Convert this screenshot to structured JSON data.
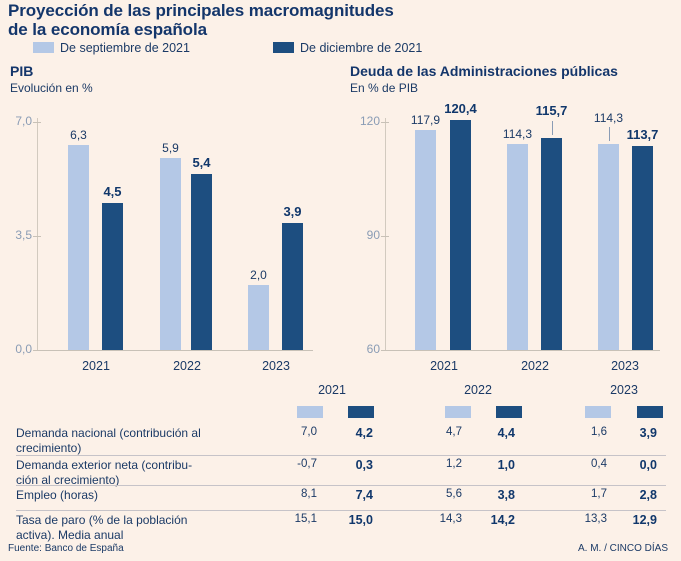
{
  "title": {
    "line1": "Proyección de las principales macromagnitudes",
    "line2": "de la economía española"
  },
  "legend": [
    {
      "label": "De septiembre de 2021",
      "color": "#b4c8e6"
    },
    {
      "label": "De diciembre de 2021",
      "color": "#1d4e80"
    }
  ],
  "colors": {
    "background": "#fcf1e8",
    "light_series": "#b4c8e6",
    "dark_series": "#1d4e80",
    "navy_text": "#1b3a66",
    "axis_label": "#8a9cb5"
  },
  "chart_data": [
    {
      "type": "bar",
      "title": "PIB",
      "subtitle": "Evolución en %",
      "categories": [
        "2021",
        "2022",
        "2023"
      ],
      "series": [
        {
          "name": "De septiembre de 2021",
          "values": [
            6.3,
            5.9,
            2.0
          ]
        },
        {
          "name": "De diciembre de 2021",
          "values": [
            4.5,
            5.4,
            3.9
          ]
        }
      ],
      "ylim": [
        0,
        7
      ],
      "yticks": [
        "7,0",
        "3,5",
        "0,0"
      ],
      "grid": false,
      "value_labels": true,
      "legend_position": "top"
    },
    {
      "type": "bar",
      "title": "Deuda de las Administraciones públicas",
      "subtitle": "En % de PIB",
      "categories": [
        "2021",
        "2022",
        "2023"
      ],
      "series": [
        {
          "name": "De septiembre de 2021",
          "values": [
            117.9,
            114.3,
            114.3
          ]
        },
        {
          "name": "De diciembre de 2021",
          "values": [
            120.4,
            115.7,
            113.7
          ]
        }
      ],
      "ylim": [
        60,
        120
      ],
      "yticks": [
        "120",
        "90",
        "60"
      ],
      "grid": false,
      "value_labels": true,
      "leader_lines": [
        {
          "series": 1,
          "index": 1
        },
        {
          "series": 0,
          "index": 2
        }
      ],
      "legend_position": "top"
    }
  ],
  "table": {
    "year_headers": [
      "2021",
      "2022",
      "2023"
    ],
    "rows": [
      {
        "label_lines": [
          "Demanda nacional (contribución al",
          "crecimiento)"
        ],
        "values": [
          "7,0",
          "4,2",
          "4,7",
          "4,4",
          "1,6",
          "3,9"
        ]
      },
      {
        "label_lines": [
          "Demanda exterior neta (contribu-",
          "ción al crecimiento)"
        ],
        "values": [
          "-0,7",
          "0,3",
          "1,2",
          "1,0",
          "0,4",
          "0,0"
        ]
      },
      {
        "label_lines": [
          "Empleo (horas)"
        ],
        "values": [
          "8,1",
          "7,4",
          "5,6",
          "3,8",
          "1,7",
          "2,8"
        ]
      },
      {
        "label_lines": [
          "Tasa de paro (% de la población",
          "activa). Media anual"
        ],
        "values": [
          "15,1",
          "15,0",
          "14,3",
          "14,2",
          "13,3",
          "12,9"
        ]
      }
    ]
  },
  "footer": {
    "source": "Fuente: Banco de España",
    "credit": "A. M. / CINCO DÍAS"
  }
}
